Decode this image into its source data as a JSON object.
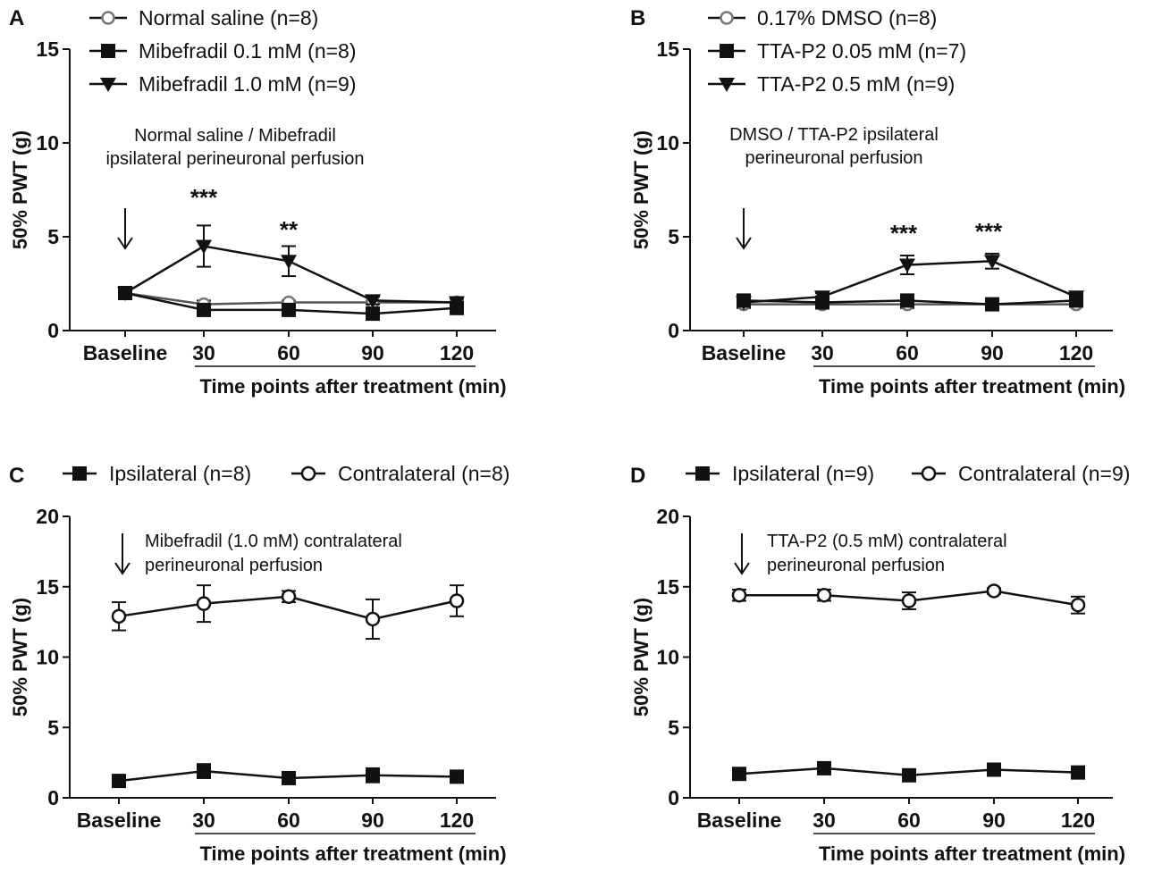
{
  "chart_data": [
    {
      "id": "A",
      "panel_label": "A",
      "type": "line",
      "ylabel": "50% PWT (g)",
      "xlabel": "Time points after treatment (min)",
      "ylim": [
        0,
        15
      ],
      "yticks": [
        0,
        5,
        10,
        15
      ],
      "categories": [
        "Baseline",
        "30",
        "60",
        "90",
        "120"
      ],
      "series": [
        {
          "name": "Normal saline (n=8)",
          "marker": "circle-gray",
          "values": [
            2.0,
            1.4,
            1.5,
            1.5,
            1.5
          ],
          "errors": [
            0.2,
            0.2,
            0.1,
            0.1,
            0.2
          ]
        },
        {
          "name": "Mibefradil 0.1 mM  (n=8)",
          "marker": "square",
          "values": [
            2.0,
            1.1,
            1.1,
            0.9,
            1.2
          ],
          "errors": [
            0.2,
            0.2,
            0.2,
            0.1,
            0.2
          ]
        },
        {
          "name": "Mibefradil 1.0 mM (n=9)",
          "marker": "triangle-down",
          "values": [
            2.0,
            4.5,
            3.7,
            1.6,
            1.5
          ],
          "errors": [
            0.3,
            1.1,
            0.8,
            0.2,
            0.2
          ]
        }
      ],
      "annotation": [
        "Normal saline / Mibefradil",
        "ipsilateral perineuronal perfusion"
      ],
      "arrow_at": "Baseline",
      "significance": [
        {
          "category": "30",
          "label": "***"
        },
        {
          "category": "60",
          "label": "**"
        }
      ]
    },
    {
      "id": "B",
      "panel_label": "B",
      "type": "line",
      "ylabel": "50% PWT (g)",
      "xlabel": "Time points after treatment (min)",
      "ylim": [
        0,
        15
      ],
      "yticks": [
        0,
        5,
        10,
        15
      ],
      "categories": [
        "Baseline",
        "30",
        "60",
        "90",
        "120"
      ],
      "series": [
        {
          "name": "0.17% DMSO (n=8)",
          "marker": "circle-gray",
          "values": [
            1.4,
            1.4,
            1.4,
            1.4,
            1.4
          ],
          "errors": [
            0.2,
            0.2,
            0.2,
            0.1,
            0.1
          ]
        },
        {
          "name": "TTA-P2 0.05 mM  (n=7)",
          "marker": "square",
          "values": [
            1.6,
            1.5,
            1.6,
            1.4,
            1.6
          ],
          "errors": [
            0.3,
            0.2,
            0.3,
            0.2,
            0.2
          ]
        },
        {
          "name": "TTA-P2 0.5 mM (n=9)",
          "marker": "triangle-down",
          "values": [
            1.5,
            1.8,
            3.5,
            3.7,
            1.8
          ],
          "errors": [
            0.2,
            0.2,
            0.5,
            0.4,
            0.2
          ]
        }
      ],
      "annotation": [
        "DMSO / TTA-P2 ipsilateral",
        "perineuronal perfusion"
      ],
      "arrow_at": "Baseline",
      "significance": [
        {
          "category": "60",
          "label": "***"
        },
        {
          "category": "90",
          "label": "***"
        }
      ]
    },
    {
      "id": "C",
      "panel_label": "C",
      "type": "line",
      "ylabel": "50% PWT (g)",
      "xlabel": "Time points after treatment (min)",
      "ylim": [
        0,
        20
      ],
      "yticks": [
        0,
        5,
        10,
        15,
        20
      ],
      "categories": [
        "Baseline",
        "30",
        "60",
        "90",
        "120"
      ],
      "series": [
        {
          "name": "Ipsilateral (n=8)",
          "marker": "square",
          "values": [
            1.2,
            1.9,
            1.4,
            1.6,
            1.5
          ],
          "errors": [
            0.2,
            0.5,
            0.2,
            0.5,
            0.3
          ]
        },
        {
          "name": "Contralateral (n=8)",
          "marker": "circle-open",
          "values": [
            12.9,
            13.8,
            14.3,
            12.7,
            14.0
          ],
          "errors": [
            1.0,
            1.3,
            0.4,
            1.4,
            1.1
          ]
        }
      ],
      "annotation": [
        "Mibefradil (1.0 mM) contralateral",
        "perineuronal perfusion"
      ],
      "arrow_at": "Baseline",
      "significance": []
    },
    {
      "id": "D",
      "panel_label": "D",
      "type": "line",
      "ylabel": "50% PWT (g)",
      "xlabel": "Time points after treatment (min)",
      "ylim": [
        0,
        20
      ],
      "yticks": [
        0,
        5,
        10,
        15,
        20
      ],
      "categories": [
        "Baseline",
        "30",
        "60",
        "90",
        "120"
      ],
      "series": [
        {
          "name": "Ipsilateral (n=9)",
          "marker": "square",
          "values": [
            1.7,
            2.1,
            1.6,
            2.0,
            1.8
          ],
          "errors": [
            0.2,
            0.4,
            0.2,
            0.2,
            0.2
          ]
        },
        {
          "name": "Contralateral (n=9)",
          "marker": "circle-open",
          "values": [
            14.4,
            14.4,
            14.0,
            14.7,
            13.7
          ],
          "errors": [
            0.4,
            0.4,
            0.6,
            0.2,
            0.6
          ]
        }
      ],
      "annotation": [
        "TTA-P2 (0.5 mM) contralateral",
        "perineuronal perfusion"
      ],
      "arrow_at": "Baseline",
      "significance": []
    }
  ]
}
